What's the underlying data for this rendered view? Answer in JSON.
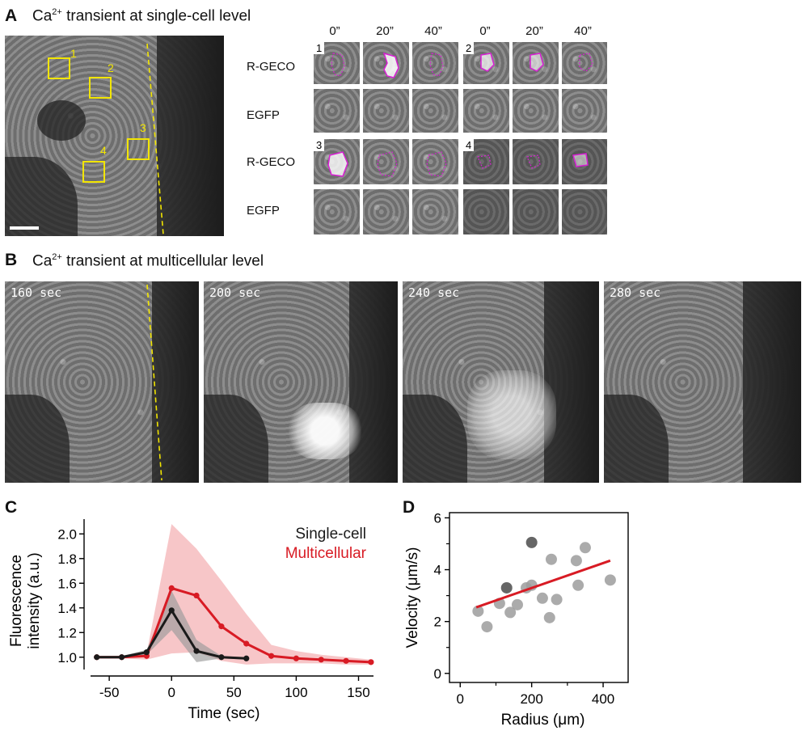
{
  "panel_a": {
    "letter": "A",
    "title_pre": "Ca",
    "title_sup": "2+",
    "title_post": " transient at single-cell level",
    "roi_labels": [
      "1",
      "2",
      "3",
      "4"
    ],
    "roi_color": "#f2e500",
    "col_headers": [
      "0”",
      "20”",
      "40”",
      "0”",
      "20”",
      "40”"
    ],
    "row_labels": [
      "R-GECO",
      "EGFP",
      "R-GECO",
      "EGFP"
    ],
    "thumb_numbers": [
      "1",
      "2",
      "3",
      "4"
    ],
    "outline_color": "#d81fd4"
  },
  "panel_b": {
    "letter": "B",
    "title_pre": "Ca",
    "title_sup": "2+",
    "title_post": " transient at multicellular level",
    "timestamps": [
      "160 sec",
      "200 sec",
      "240 sec",
      "280 sec"
    ]
  },
  "panel_c": {
    "letter": "C",
    "legend": [
      "Single-cell",
      "Multicellular"
    ]
  },
  "panel_d": {
    "letter": "D"
  },
  "chart_data": [
    {
      "type": "line",
      "xlabel": "Time (sec)",
      "ylabel_lines": [
        "Fluorescence",
        "intensity (a.u.)"
      ],
      "xlim": [
        -65,
        162
      ],
      "ylim": [
        0.9,
        2.12
      ],
      "xticks": [
        -50,
        0,
        50,
        100,
        150
      ],
      "yticks": [
        1.0,
        1.2,
        1.4,
        1.6,
        1.8,
        2.0
      ],
      "ytick_labels": [
        "1.0",
        "1.2",
        "1.4",
        "1.6",
        "1.8",
        "2.0"
      ],
      "series": [
        {
          "name": "Single-cell",
          "color": "#1a1a1a",
          "band_color": "#9a9a9a",
          "x": [
            -60,
            -40,
            -20,
            0,
            20,
            40,
            60
          ],
          "y": [
            1.0,
            1.0,
            1.04,
            1.38,
            1.05,
            1.0,
            0.99
          ],
          "lower": [
            0.99,
            0.99,
            1.02,
            1.22,
            0.96,
            0.99,
            0.98
          ],
          "upper": [
            1.01,
            1.01,
            1.06,
            1.54,
            1.14,
            1.01,
            1.0
          ]
        },
        {
          "name": "Multicellular",
          "color": "#d81b24",
          "band_color": "#f4b3b6",
          "x": [
            -60,
            -40,
            -20,
            0,
            20,
            40,
            60,
            80,
            100,
            120,
            140,
            160
          ],
          "y": [
            1.0,
            1.0,
            1.01,
            1.56,
            1.5,
            1.25,
            1.11,
            1.01,
            0.99,
            0.98,
            0.97,
            0.96
          ],
          "lower": [
            0.99,
            0.99,
            0.98,
            1.03,
            1.04,
            0.97,
            0.94,
            0.95,
            0.95,
            0.95,
            0.94,
            0.94
          ],
          "upper": [
            1.01,
            1.01,
            1.03,
            2.08,
            1.88,
            1.62,
            1.35,
            1.1,
            1.05,
            1.02,
            1.0,
            0.98
          ]
        }
      ]
    },
    {
      "type": "scatter",
      "xlabel": "Radius (μm)",
      "ylabel": "Velocity (μm/s)",
      "xlim": [
        -30,
        470
      ],
      "ylim": [
        -0.35,
        6.2
      ],
      "xticks": [
        0,
        200,
        400
      ],
      "yticks": [
        0,
        2,
        4,
        6
      ],
      "points_light": {
        "color": "#9c9c9c",
        "x": [
          50,
          75,
          110,
          140,
          160,
          185,
          200,
          230,
          250,
          255,
          270,
          325,
          330,
          350,
          420
        ],
        "y": [
          2.4,
          1.8,
          2.7,
          2.35,
          2.65,
          3.3,
          3.4,
          2.9,
          2.15,
          4.4,
          2.85,
          4.35,
          3.4,
          4.85,
          3.6
        ]
      },
      "points_dark": {
        "color": "#555555",
        "x": [
          130,
          200
        ],
        "y": [
          3.3,
          5.05
        ]
      },
      "fit_line": {
        "color": "#d81b24",
        "x": [
          45,
          420
        ],
        "y": [
          2.55,
          4.35
        ]
      }
    }
  ]
}
